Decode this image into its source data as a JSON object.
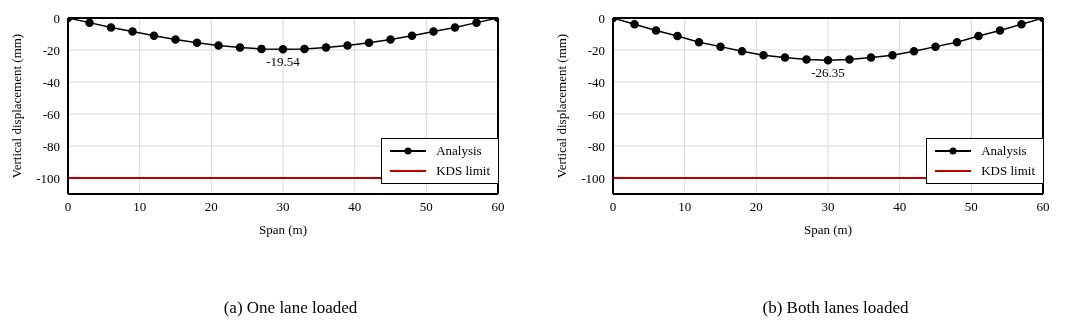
{
  "chart_data": [
    {
      "type": "line",
      "title": "(a) One lane loaded",
      "xlabel": "Span (m)",
      "ylabel": "Vertical displacement (mm)",
      "x": [
        0,
        3,
        6,
        9,
        12,
        15,
        18,
        21,
        24,
        27,
        30,
        33,
        36,
        39,
        42,
        45,
        48,
        51,
        54,
        57,
        60
      ],
      "series": [
        {
          "name": "Analysis",
          "color": "#000000",
          "values": [
            0,
            -2.9,
            -5.9,
            -8.5,
            -11.1,
            -13.5,
            -15.4,
            -17.2,
            -18.5,
            -19.3,
            -19.54,
            -19.3,
            -18.5,
            -17.2,
            -15.4,
            -13.5,
            -11.1,
            -8.5,
            -5.9,
            -2.9,
            0
          ]
        }
      ],
      "xlim": [
        0,
        60
      ],
      "xticks": [
        0,
        10,
        20,
        30,
        40,
        50,
        60
      ],
      "ylim": [
        -110,
        0
      ],
      "yticks": [
        -100,
        -80,
        -60,
        -40,
        -20,
        0
      ],
      "ref_lines": [
        {
          "axis": "y",
          "value": -100,
          "label": "KDS limit",
          "color": "#c00000"
        }
      ],
      "annotations": [
        {
          "text": "-19.54",
          "x": 30,
          "y": -19.54
        }
      ],
      "grid": true,
      "legend": "bottom right",
      "marker": "circle",
      "line_style": "solid"
    },
    {
      "type": "line",
      "title": "(b) Both lanes loaded",
      "xlabel": "Span (m)",
      "ylabel": "Vertical displacement (mm)",
      "x": [
        0,
        3,
        6,
        9,
        12,
        15,
        18,
        21,
        24,
        27,
        30,
        33,
        36,
        39,
        42,
        45,
        48,
        51,
        54,
        57,
        60
      ],
      "series": [
        {
          "name": "Analysis",
          "color": "#000000",
          "values": [
            0,
            -3.9,
            -7.8,
            -11.2,
            -15.1,
            -17.9,
            -20.8,
            -23.3,
            -24.7,
            -25.9,
            -26.35,
            -26.0,
            -24.7,
            -23.3,
            -20.8,
            -17.9,
            -15.1,
            -11.2,
            -7.8,
            -3.9,
            0
          ]
        }
      ],
      "xlim": [
        0,
        60
      ],
      "xticks": [
        0,
        10,
        20,
        30,
        40,
        50,
        60
      ],
      "ylim": [
        -110,
        0
      ],
      "yticks": [
        -100,
        -80,
        -60,
        -40,
        -20,
        0
      ],
      "ref_lines": [
        {
          "axis": "y",
          "value": -100,
          "label": "KDS limit",
          "color": "#c00000"
        }
      ],
      "annotations": [
        {
          "text": "-26.35",
          "x": 30,
          "y": -26.35
        }
      ],
      "grid": true,
      "legend": "bottom right",
      "marker": "circle",
      "line_style": "solid"
    }
  ]
}
